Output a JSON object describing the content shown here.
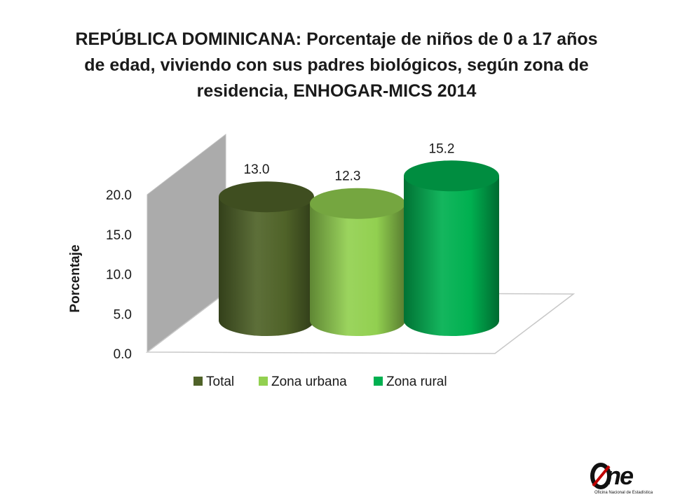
{
  "title_lines": [
    "REPÚBLICA DOMINICANA: Porcentaje de niños de 0 a 17 años",
    "de edad, viviendo con sus padres  biológicos, según zona de",
    "residencia, ENHOGAR-MICS 2014"
  ],
  "chart_data": {
    "type": "bar",
    "title": "REPÚBLICA DOMINICANA: Porcentaje de niños de 0 a 17 años de edad, viviendo con sus padres  biológicos, según zona de residencia, ENHOGAR-MICS 2014",
    "xlabel": "",
    "ylabel": "Porcentaje",
    "ylim": [
      0,
      20
    ],
    "yticks": [
      "0.0",
      "5.0",
      "10.0",
      "15.0",
      "20.0"
    ],
    "series": [
      {
        "name": "Total",
        "value": 13.0,
        "label": "13.0",
        "color": "#4f6228"
      },
      {
        "name": "Zona urbana",
        "value": 12.3,
        "label": "12.3",
        "color": "#92d050"
      },
      {
        "name": "Zona rural",
        "value": 15.2,
        "label": "15.2",
        "color": "#00b050"
      }
    ],
    "legend_position": "bottom",
    "style": "3d-cylinder",
    "grid": false
  },
  "logo": {
    "text": "ne",
    "subtitle": "Oficina Nacional de Estadística"
  }
}
